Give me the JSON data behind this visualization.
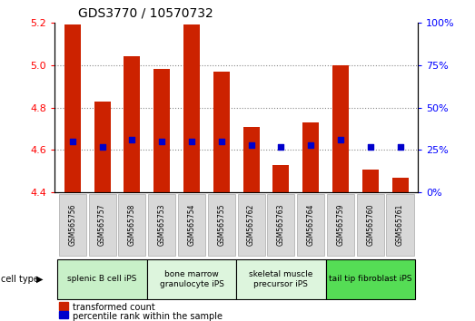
{
  "title": "GDS3770 / 10570732",
  "samples": [
    "GSM565756",
    "GSM565757",
    "GSM565758",
    "GSM565753",
    "GSM565754",
    "GSM565755",
    "GSM565762",
    "GSM565763",
    "GSM565764",
    "GSM565759",
    "GSM565760",
    "GSM565761"
  ],
  "transformed_count": [
    5.19,
    4.83,
    5.04,
    4.98,
    5.19,
    4.97,
    4.71,
    4.53,
    4.73,
    5.0,
    4.51,
    4.47
  ],
  "percentile_rank": [
    30,
    27,
    31,
    30,
    30,
    30,
    28,
    27,
    28,
    31,
    27,
    27
  ],
  "cell_types": [
    {
      "label": "splenic B cell iPS",
      "start": 0,
      "end": 3,
      "color": "#c8f0c8"
    },
    {
      "label": "bone marrow\ngranulocyte iPS",
      "start": 3,
      "end": 6,
      "color": "#ddf5dd"
    },
    {
      "label": "skeletal muscle\nprecursor iPS",
      "start": 6,
      "end": 9,
      "color": "#ddf5dd"
    },
    {
      "label": "tail tip fibroblast iPS",
      "start": 9,
      "end": 12,
      "color": "#55dd55"
    }
  ],
  "ylim_left": [
    4.4,
    5.2
  ],
  "ylim_right": [
    0,
    100
  ],
  "yticks_left": [
    4.4,
    4.6,
    4.8,
    5.0,
    5.2
  ],
  "yticks_right": [
    0,
    25,
    50,
    75,
    100
  ],
  "bar_color": "#cc2200",
  "dot_color": "#0000cc",
  "bar_bottom": 4.4,
  "legend_items": [
    "transformed count",
    "percentile rank within the sample"
  ],
  "legend_colors": [
    "#cc2200",
    "#0000cc"
  ],
  "cell_type_label": "cell type",
  "grid_color": "#888888",
  "grid_ticks": [
    4.6,
    4.8,
    5.0
  ]
}
